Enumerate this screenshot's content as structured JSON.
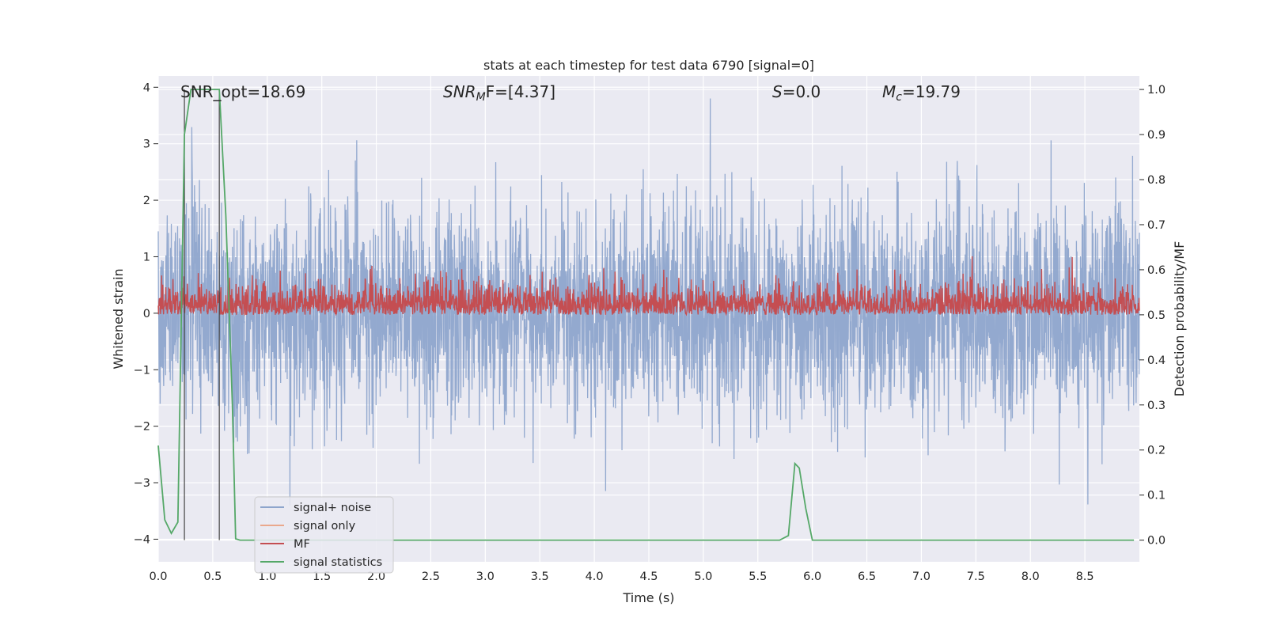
{
  "chart_data": {
    "type": "line",
    "title": "stats at each timestep for test data 6790 [signal=0]",
    "xlabel": "Time (s)",
    "ylabel": "Whitened strain",
    "ylabel_right": "Detection probability/MF",
    "xlim": [
      0.0,
      9.0
    ],
    "ylim": [
      -4.4,
      4.2
    ],
    "ylim_right": [
      -0.048,
      1.03
    ],
    "x_ticks": [
      "0.0",
      "0.5",
      "1.0",
      "1.5",
      "2.0",
      "2.5",
      "3.0",
      "3.5",
      "4.0",
      "4.5",
      "5.0",
      "5.5",
      "6.0",
      "6.5",
      "7.0",
      "7.5",
      "8.0",
      "8.5"
    ],
    "y_ticks": [
      "4",
      "3",
      "2",
      "1",
      "0",
      "−1",
      "−2",
      "−3",
      "−4"
    ],
    "y_ticks_right": [
      "1.0",
      "0.9",
      "0.8",
      "0.7",
      "0.6",
      "0.5",
      "0.4",
      "0.3",
      "0.2",
      "0.1",
      "0.0"
    ],
    "annotations": {
      "snr_opt": "SNR_opt=18.69",
      "snr_mf_prefix": "SNR",
      "snr_mf_sub": "M",
      "snr_mf_suffix": "F=[4.37]",
      "s_var": "S",
      "s_value": "=0.0",
      "mc_var": "M",
      "mc_sub": "c",
      "mc_value": "=19.79"
    },
    "legend": {
      "placement": "lower-left",
      "entries": [
        "signal+ noise",
        "signal only",
        "MF",
        "signal statistics"
      ]
    },
    "colors": {
      "signal_noise": "#8ea5cc",
      "signal_only": "#eaa88c",
      "mf": "#c44e52",
      "signal_statistics": "#55a868",
      "background": "#eaeaf2",
      "grid": "#ffffff"
    },
    "grid": true,
    "series": [
      {
        "name": "signal+ noise",
        "axis": "left",
        "description_values": {
          "x_range": [
            0.0,
            9.0
          ],
          "typical_amplitude": 1.5,
          "min": -3.4,
          "max": 3.8
        }
      },
      {
        "name": "signal only",
        "axis": "left",
        "values": []
      },
      {
        "name": "MF",
        "axis": "right",
        "description_values": {
          "x_range": [
            0.0,
            9.0
          ],
          "baseline": 0.5,
          "min": 0.5,
          "max": 0.63
        }
      },
      {
        "name": "signal statistics",
        "axis": "right",
        "x": [
          0.0,
          0.06,
          0.12,
          0.18,
          0.24,
          0.3,
          0.36,
          0.42,
          0.5,
          0.56,
          0.62,
          0.68,
          0.71,
          0.75,
          0.8,
          5.7,
          5.78,
          5.84,
          5.88,
          5.94,
          6.0,
          8.95
        ],
        "y": [
          0.21,
          0.045,
          0.015,
          0.04,
          0.9,
          1.0,
          1.0,
          1.0,
          1.0,
          1.0,
          0.72,
          0.3,
          0.003,
          0.0,
          0.0,
          0.0,
          0.01,
          0.17,
          0.16,
          0.07,
          0.0,
          0.0
        ]
      }
    ],
    "vertical_markers_x": [
      0.24,
      0.56
    ]
  }
}
